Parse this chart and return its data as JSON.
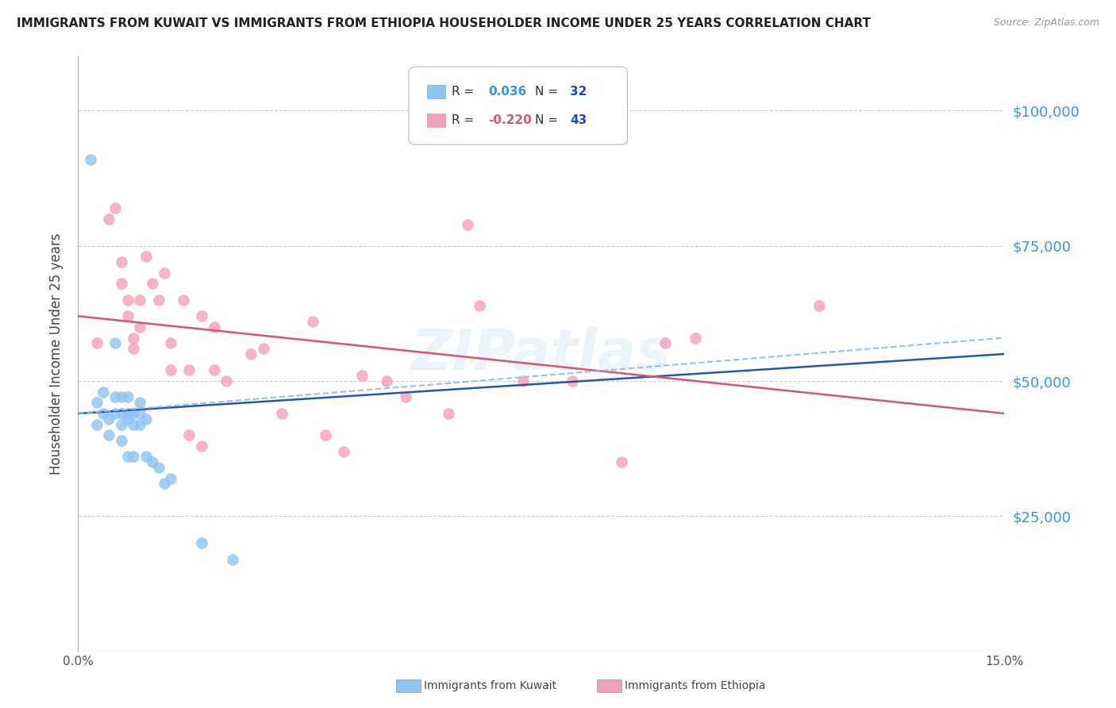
{
  "title": "IMMIGRANTS FROM KUWAIT VS IMMIGRANTS FROM ETHIOPIA HOUSEHOLDER INCOME UNDER 25 YEARS CORRELATION CHART",
  "source": "Source: ZipAtlas.com",
  "ylabel": "Householder Income Under 25 years",
  "xlim": [
    0.0,
    0.15
  ],
  "ylim": [
    0,
    110000
  ],
  "yticks": [
    0,
    25000,
    50000,
    75000,
    100000
  ],
  "ytick_labels": [
    "",
    "$25,000",
    "$50,000",
    "$75,000",
    "$100,000"
  ],
  "xticks": [
    0.0,
    0.03,
    0.06,
    0.09,
    0.12,
    0.15
  ],
  "xtick_labels": [
    "0.0%",
    "",
    "",
    "",
    "",
    "15.0%"
  ],
  "kuwait_color": "#8DC4F0",
  "ethiopia_color": "#F4A0B8",
  "kuwait_line_color": "#2255BB",
  "ethiopia_line_color": "#E05070",
  "dashed_line_color": "#88BBEE",
  "axis_label_color": "#3399DD",
  "r_value_color": "#3399DD",
  "n_value_color": "#2244CC",
  "watermark": "ZIPatlas",
  "background_color": "#FFFFFF",
  "grid_color": "#CCCCCC",
  "kuwait_points_x": [
    0.002,
    0.003,
    0.003,
    0.004,
    0.004,
    0.005,
    0.005,
    0.006,
    0.006,
    0.006,
    0.007,
    0.007,
    0.007,
    0.007,
    0.008,
    0.008,
    0.008,
    0.008,
    0.009,
    0.009,
    0.009,
    0.01,
    0.01,
    0.01,
    0.011,
    0.011,
    0.012,
    0.013,
    0.014,
    0.015,
    0.02,
    0.025
  ],
  "kuwait_points_y": [
    91000,
    46000,
    42000,
    44000,
    48000,
    43000,
    40000,
    57000,
    47000,
    44000,
    47000,
    44000,
    42000,
    39000,
    47000,
    44000,
    43000,
    36000,
    44000,
    42000,
    36000,
    46000,
    44000,
    42000,
    43000,
    36000,
    35000,
    34000,
    31000,
    32000,
    20000,
    17000
  ],
  "ethiopia_points_x": [
    0.003,
    0.005,
    0.006,
    0.007,
    0.007,
    0.008,
    0.008,
    0.009,
    0.009,
    0.01,
    0.01,
    0.011,
    0.012,
    0.013,
    0.014,
    0.015,
    0.015,
    0.017,
    0.018,
    0.018,
    0.02,
    0.02,
    0.022,
    0.022,
    0.024,
    0.028,
    0.03,
    0.033,
    0.038,
    0.04,
    0.043,
    0.046,
    0.05,
    0.053,
    0.06,
    0.063,
    0.065,
    0.072,
    0.08,
    0.088,
    0.095,
    0.1,
    0.12
  ],
  "ethiopia_points_y": [
    57000,
    80000,
    82000,
    68000,
    72000,
    65000,
    62000,
    58000,
    56000,
    65000,
    60000,
    73000,
    68000,
    65000,
    70000,
    57000,
    52000,
    65000,
    52000,
    40000,
    62000,
    38000,
    60000,
    52000,
    50000,
    55000,
    56000,
    44000,
    61000,
    40000,
    37000,
    51000,
    50000,
    47000,
    44000,
    79000,
    64000,
    50000,
    50000,
    35000,
    57000,
    58000,
    64000
  ],
  "kuwait_regression": [
    44000,
    55000
  ],
  "ethiopia_regression": [
    62000,
    44000
  ],
  "dashed_regression": [
    44000,
    58000
  ]
}
